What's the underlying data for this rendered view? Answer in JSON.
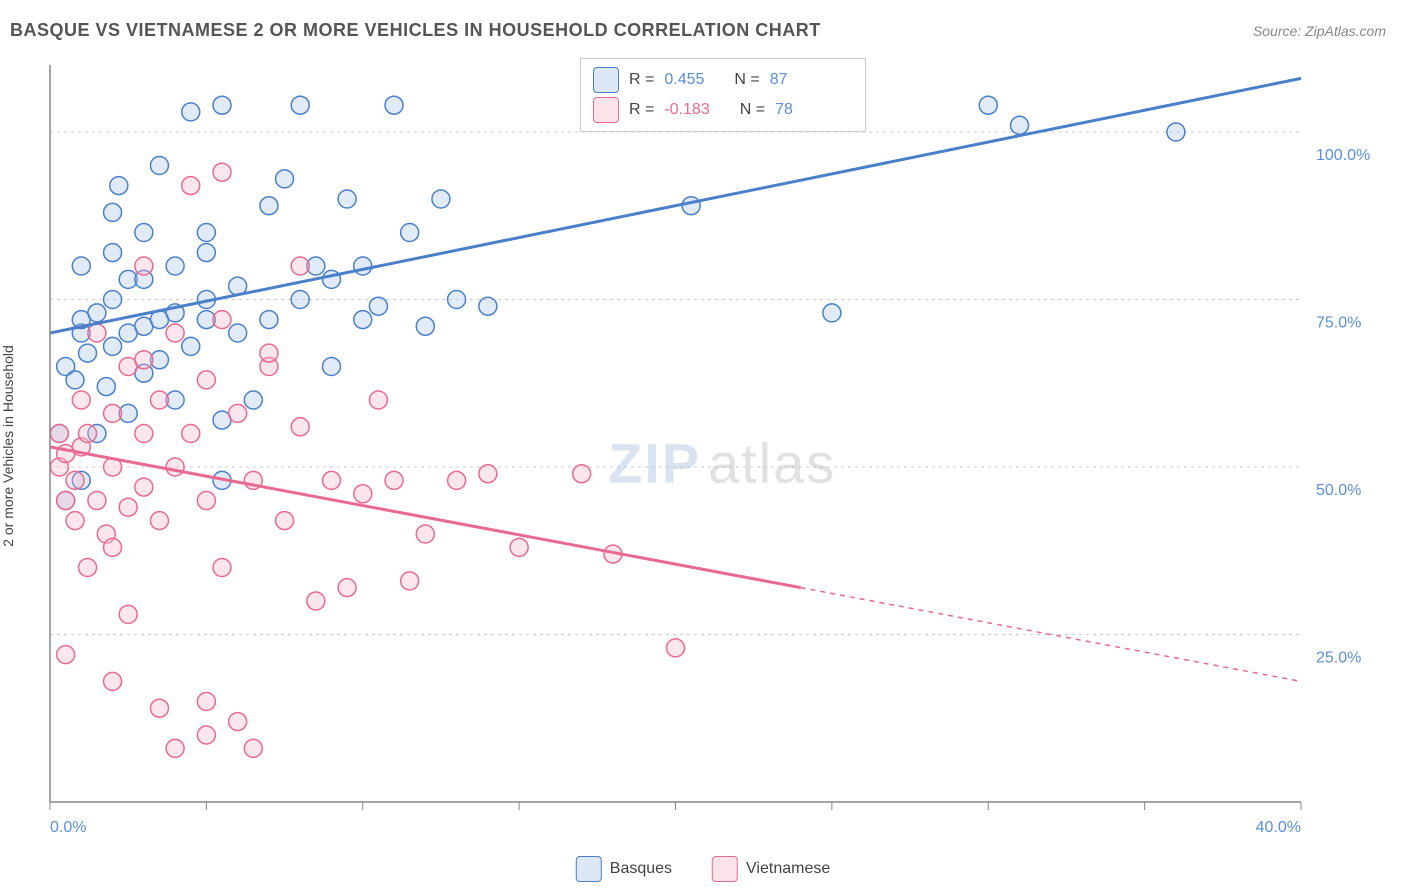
{
  "header": {
    "title": "BASQUE VS VIETNAMESE 2 OR MORE VEHICLES IN HOUSEHOLD CORRELATION CHART",
    "source": "Source: ZipAtlas.com"
  },
  "chart": {
    "type": "scatter",
    "ylabel": "2 or more Vehicles in Household",
    "watermark_primary": "ZIP",
    "watermark_secondary": "atlas",
    "xlim": [
      0,
      40
    ],
    "ylim": [
      0,
      110
    ],
    "x_ticks": [
      0,
      5,
      10,
      15,
      20,
      25,
      30,
      35,
      40
    ],
    "y_ticks": [
      25,
      50,
      75,
      100
    ],
    "x_tick_labels": {
      "0": "0.0%",
      "40": "40.0%"
    },
    "y_tick_labels": {
      "25": "25.0%",
      "50": "50.0%",
      "75": "75.0%",
      "100": "100.0%"
    },
    "background_color": "#ffffff",
    "grid_color": "#cccccc",
    "axis_color": "#888888",
    "marker_radius": 9,
    "series": [
      {
        "name": "Basques",
        "color_stroke": "#4a7fc9",
        "color_fill": "#a8c5e9",
        "regression": {
          "r": 0.455,
          "n": 87,
          "x0": 0,
          "y0": 70,
          "x1": 40,
          "y1": 108,
          "solid_until_x": 40
        },
        "points": [
          [
            0.3,
            55
          ],
          [
            0.5,
            45
          ],
          [
            0.5,
            65
          ],
          [
            0.8,
            63
          ],
          [
            1,
            70
          ],
          [
            1,
            72
          ],
          [
            1,
            80
          ],
          [
            1,
            48
          ],
          [
            1.2,
            67
          ],
          [
            1.5,
            73
          ],
          [
            1.5,
            55
          ],
          [
            1.8,
            62
          ],
          [
            2,
            75
          ],
          [
            2,
            82
          ],
          [
            2,
            88
          ],
          [
            2,
            68
          ],
          [
            2.2,
            92
          ],
          [
            2.5,
            78
          ],
          [
            2.5,
            70
          ],
          [
            2.5,
            58
          ],
          [
            3,
            85
          ],
          [
            3,
            71
          ],
          [
            3,
            64
          ],
          [
            3,
            78
          ],
          [
            3.5,
            72
          ],
          [
            3.5,
            95
          ],
          [
            3.5,
            66
          ],
          [
            4,
            60
          ],
          [
            4,
            73
          ],
          [
            4,
            80
          ],
          [
            4.5,
            103
          ],
          [
            4.5,
            68
          ],
          [
            5,
            72
          ],
          [
            5,
            75
          ],
          [
            5,
            82
          ],
          [
            5,
            85
          ],
          [
            5.5,
            104
          ],
          [
            5.5,
            57
          ],
          [
            5.5,
            48
          ],
          [
            6,
            70
          ],
          [
            6,
            77
          ],
          [
            6.5,
            60
          ],
          [
            7,
            89
          ],
          [
            7,
            72
          ],
          [
            7.5,
            93
          ],
          [
            8,
            75
          ],
          [
            8,
            104
          ],
          [
            8.5,
            80
          ],
          [
            9,
            65
          ],
          [
            9,
            78
          ],
          [
            9.5,
            90
          ],
          [
            10,
            80
          ],
          [
            10,
            72
          ],
          [
            10.5,
            74
          ],
          [
            11,
            104
          ],
          [
            11.5,
            85
          ],
          [
            12,
            71
          ],
          [
            12.5,
            90
          ],
          [
            13,
            75
          ],
          [
            14,
            74
          ],
          [
            20,
            104
          ],
          [
            20.5,
            89
          ],
          [
            25,
            73
          ],
          [
            30,
            104
          ],
          [
            31,
            101
          ],
          [
            36,
            100
          ]
        ]
      },
      {
        "name": "Vietnamese",
        "color_stroke": "#e86a8f",
        "color_fill": "#f5b8ca",
        "regression": {
          "r": -0.183,
          "n": 78,
          "x0": 0,
          "y0": 53,
          "x1": 40,
          "y1": 18,
          "solid_until_x": 24
        },
        "points": [
          [
            0.3,
            55
          ],
          [
            0.3,
            50
          ],
          [
            0.5,
            52
          ],
          [
            0.5,
            45
          ],
          [
            0.5,
            22
          ],
          [
            0.8,
            42
          ],
          [
            0.8,
            48
          ],
          [
            1,
            53
          ],
          [
            1,
            60
          ],
          [
            1.2,
            35
          ],
          [
            1.2,
            55
          ],
          [
            1.5,
            45
          ],
          [
            1.5,
            70
          ],
          [
            1.8,
            40
          ],
          [
            2,
            50
          ],
          [
            2,
            58
          ],
          [
            2,
            38
          ],
          [
            2,
            18
          ],
          [
            2.5,
            65
          ],
          [
            2.5,
            44
          ],
          [
            2.5,
            28
          ],
          [
            3,
            55
          ],
          [
            3,
            47
          ],
          [
            3,
            66
          ],
          [
            3,
            80
          ],
          [
            3.5,
            42
          ],
          [
            3.5,
            60
          ],
          [
            3.5,
            14
          ],
          [
            4,
            70
          ],
          [
            4,
            50
          ],
          [
            4,
            8
          ],
          [
            4.5,
            55
          ],
          [
            4.5,
            92
          ],
          [
            5,
            45
          ],
          [
            5,
            63
          ],
          [
            5,
            10
          ],
          [
            5,
            15
          ],
          [
            5.5,
            72
          ],
          [
            5.5,
            35
          ],
          [
            5.5,
            94
          ],
          [
            6,
            58
          ],
          [
            6,
            12
          ],
          [
            6.5,
            48
          ],
          [
            6.5,
            8
          ],
          [
            7,
            65
          ],
          [
            7,
            67
          ],
          [
            7.5,
            42
          ],
          [
            8,
            56
          ],
          [
            8,
            80
          ],
          [
            8.5,
            30
          ],
          [
            9,
            48
          ],
          [
            9.5,
            32
          ],
          [
            10,
            46
          ],
          [
            10.5,
            60
          ],
          [
            11,
            48
          ],
          [
            11.5,
            33
          ],
          [
            12,
            40
          ],
          [
            13,
            48
          ],
          [
            14,
            49
          ],
          [
            15,
            38
          ],
          [
            17,
            49
          ],
          [
            18,
            37
          ],
          [
            20,
            23
          ]
        ]
      }
    ],
    "correlation_legend": {
      "rows": [
        {
          "swatch_stroke": "#4a7fc9",
          "swatch_fill": "#a8c5e9",
          "r_label": "R =",
          "r_value": "0.455",
          "r_color": "#5b8fd6",
          "n_label": "N =",
          "n_value": "87",
          "n_color": "#5b8fd6"
        },
        {
          "swatch_stroke": "#e86a8f",
          "swatch_fill": "#f5b8ca",
          "r_label": "R =",
          "r_value": "-0.183",
          "r_color": "#e86a8f",
          "n_label": "N =",
          "n_value": "78",
          "n_color": "#5b8fd6"
        }
      ]
    },
    "bottom_legend": [
      {
        "swatch_stroke": "#4a7fc9",
        "swatch_fill": "#a8c5e9",
        "label": "Basques"
      },
      {
        "swatch_stroke": "#e86a8f",
        "swatch_fill": "#f5b8ca",
        "label": "Vietnamese"
      }
    ]
  }
}
